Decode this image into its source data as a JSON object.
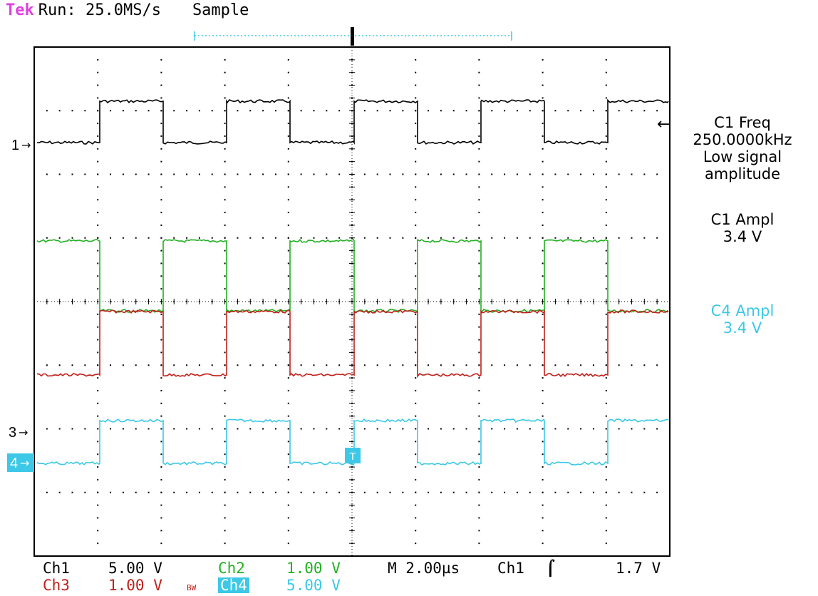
{
  "header": {
    "brand": "Tek",
    "run_status": "Run: 25.0MS/s",
    "acquire_mode": "Sample"
  },
  "colors": {
    "ch1": "#000000",
    "ch2": "#22b022",
    "ch3": "#c0201a",
    "ch4": "#3cc8e6",
    "brand": "#e040e0",
    "grid": "#000000",
    "trigger_bar": "#3cc8e6"
  },
  "markers": {
    "ch1": "1",
    "ch2_ch3": "3",
    "ch4": "4",
    "trigger_point": "T"
  },
  "measurements": [
    {
      "line1": "C1 Freq",
      "line2": "250.0000kHz",
      "line3": "Low signal",
      "line4": "amplitude",
      "color": "#000000"
    },
    {
      "line1": "C1 Ampl",
      "line2": "3.4 V",
      "color": "#000000"
    },
    {
      "line1": "C4 Ampl",
      "line2": "3.4 V",
      "color": "#3cc8e6"
    }
  ],
  "status_bar": {
    "ch1_label": "Ch1",
    "ch1_scale": "5.00 V",
    "ch2_label": "Ch2",
    "ch2_scale": "1.00 V",
    "timebase": "M 2.00µs",
    "trigger_source": "Ch1",
    "trigger_slope_icon": "rising-edge-icon",
    "trigger_level": "1.7 V",
    "ch3_label": "Ch3",
    "ch3_scale": "1.00 V",
    "bw_limit_icon": "bandwidth-limit-icon",
    "bw_limit_text": "BW",
    "ch4_label": "Ch4",
    "ch4_scale": "5.00 V"
  }
}
